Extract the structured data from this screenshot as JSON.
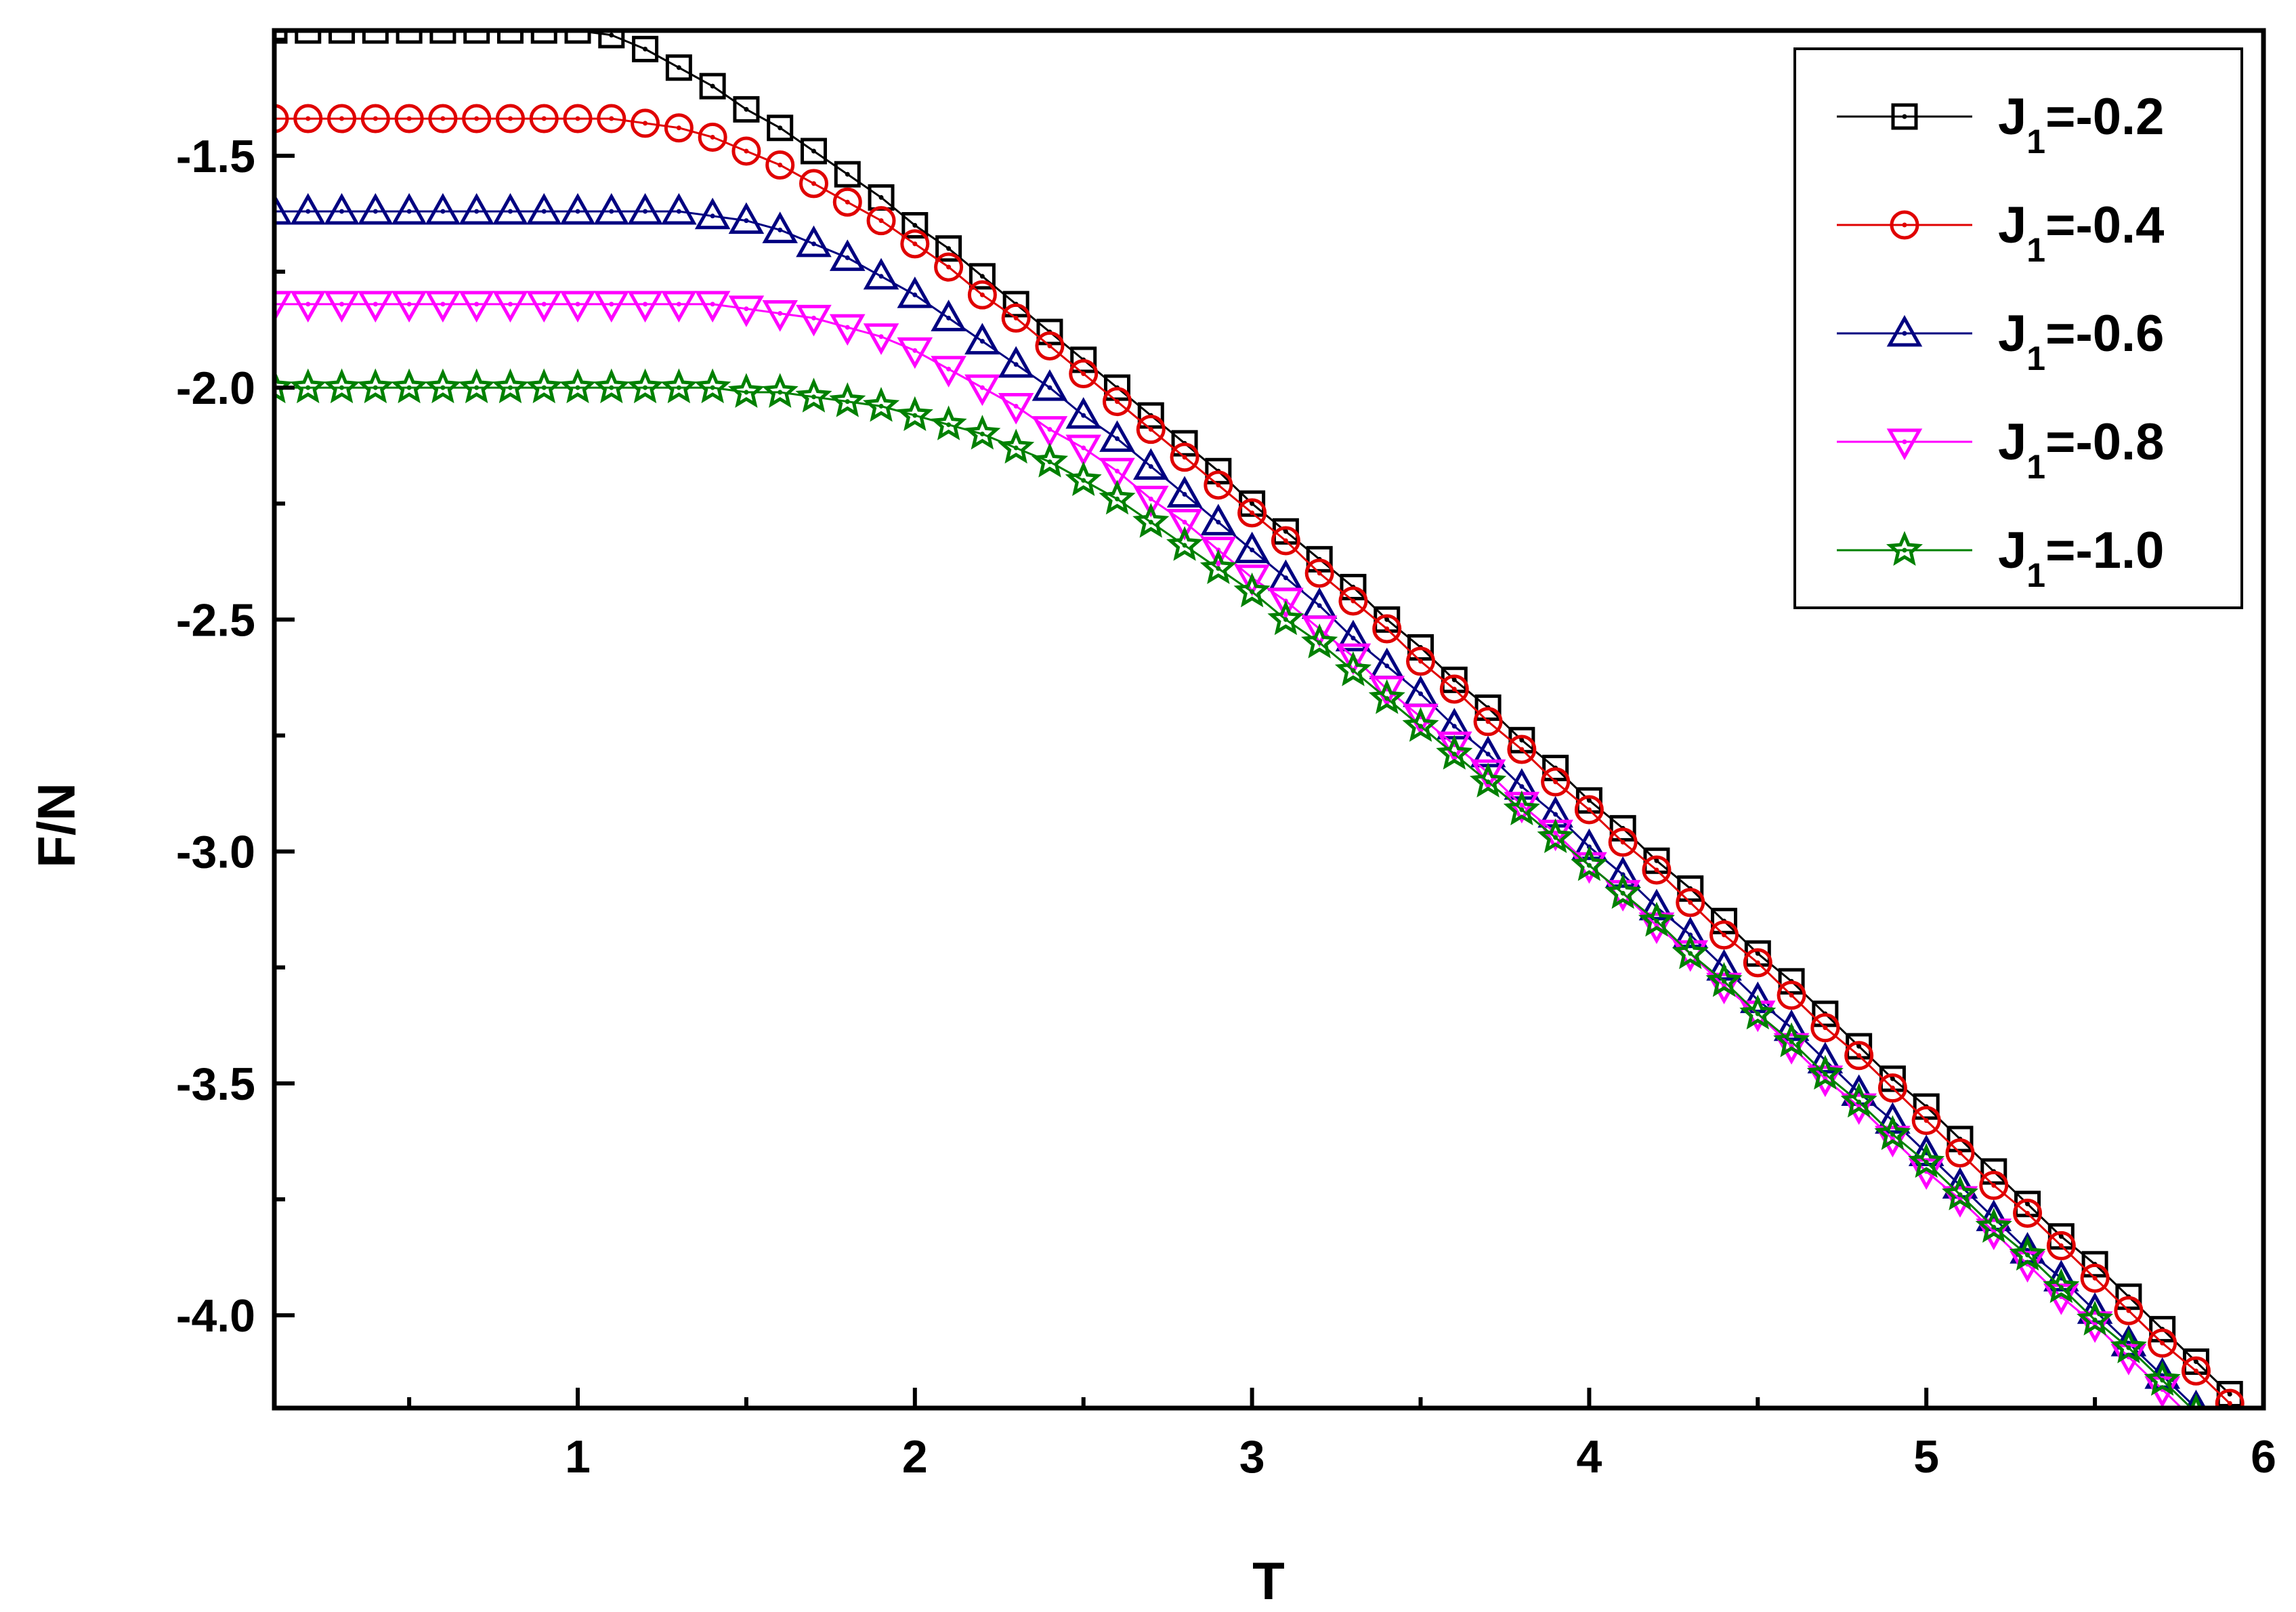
{
  "chart_data": {
    "type": "line",
    "xlabel": "T",
    "ylabel": "F/N",
    "xlim": [
      0.1,
      6.0
    ],
    "ylim": [
      -4.2,
      -1.23
    ],
    "x_ticks": [
      1,
      2,
      3,
      4,
      5,
      6
    ],
    "x_tick_labels": [
      "1",
      "2",
      "3",
      "4",
      "5",
      "6"
    ],
    "y_ticks": [
      -1.5,
      -2.0,
      -2.5,
      -3.0,
      -3.5,
      -4.0
    ],
    "y_tick_labels": [
      "-1.5",
      "-2.0",
      "-2.5",
      "-3.0",
      "-3.5",
      "-4.0"
    ],
    "grid": false,
    "legend_position": "top-right",
    "x": [
      0.1,
      0.2,
      0.3,
      0.4,
      0.5,
      0.6,
      0.7,
      0.8,
      0.9,
      1.0,
      1.1,
      1.2,
      1.3,
      1.4,
      1.5,
      1.6,
      1.7,
      1.8,
      1.9,
      2.0,
      2.1,
      2.2,
      2.3,
      2.4,
      2.5,
      2.6,
      2.7,
      2.8,
      2.9,
      3.0,
      3.1,
      3.2,
      3.3,
      3.4,
      3.5,
      3.6,
      3.7,
      3.8,
      3.9,
      4.0,
      4.1,
      4.2,
      4.3,
      4.4,
      4.5,
      4.6,
      4.7,
      4.8,
      4.9,
      5.0,
      5.1,
      5.2,
      5.3,
      5.4,
      5.5,
      5.6,
      5.7,
      5.8,
      5.9
    ],
    "series": [
      {
        "legend_prefix": "J",
        "legend_sub": "1",
        "legend_value": "=-0.2",
        "color": "#000000",
        "marker": "square",
        "values": [
          -1.23,
          -1.23,
          -1.23,
          -1.23,
          -1.23,
          -1.23,
          -1.23,
          -1.23,
          -1.23,
          -1.23,
          -1.24,
          -1.27,
          -1.31,
          -1.35,
          -1.4,
          -1.44,
          -1.49,
          -1.54,
          -1.59,
          -1.65,
          -1.7,
          -1.76,
          -1.82,
          -1.88,
          -1.94,
          -2.0,
          -2.06,
          -2.12,
          -2.18,
          -2.25,
          -2.31,
          -2.37,
          -2.43,
          -2.5,
          -2.56,
          -2.63,
          -2.69,
          -2.76,
          -2.82,
          -2.89,
          -2.95,
          -3.02,
          -3.08,
          -3.15,
          -3.22,
          -3.28,
          -3.35,
          -3.42,
          -3.49,
          -3.55,
          -3.62,
          -3.69,
          -3.76,
          -3.83,
          -3.89,
          -3.96,
          -4.03,
          -4.1,
          -4.17
        ]
      },
      {
        "legend_prefix": "J",
        "legend_sub": "1",
        "legend_value": "=-0.4",
        "color": "#e00000",
        "marker": "circle",
        "values": [
          -1.42,
          -1.42,
          -1.42,
          -1.42,
          -1.42,
          -1.42,
          -1.42,
          -1.42,
          -1.42,
          -1.42,
          -1.42,
          -1.43,
          -1.44,
          -1.46,
          -1.49,
          -1.52,
          -1.56,
          -1.6,
          -1.64,
          -1.69,
          -1.74,
          -1.8,
          -1.85,
          -1.91,
          -1.97,
          -2.03,
          -2.09,
          -2.15,
          -2.21,
          -2.27,
          -2.33,
          -2.4,
          -2.46,
          -2.52,
          -2.59,
          -2.65,
          -2.72,
          -2.78,
          -2.85,
          -2.91,
          -2.98,
          -3.04,
          -3.11,
          -3.18,
          -3.24,
          -3.31,
          -3.38,
          -3.44,
          -3.51,
          -3.58,
          -3.65,
          -3.72,
          -3.78,
          -3.85,
          -3.92,
          -3.99,
          -4.06,
          -4.12,
          -4.19
        ]
      },
      {
        "legend_prefix": "J",
        "legend_sub": "1",
        "legend_value": "=-0.6",
        "color": "#000080",
        "marker": "triangle-up",
        "values": [
          -1.62,
          -1.62,
          -1.62,
          -1.62,
          -1.62,
          -1.62,
          -1.62,
          -1.62,
          -1.62,
          -1.62,
          -1.62,
          -1.62,
          -1.62,
          -1.63,
          -1.64,
          -1.66,
          -1.69,
          -1.72,
          -1.76,
          -1.8,
          -1.85,
          -1.9,
          -1.95,
          -2.0,
          -2.06,
          -2.11,
          -2.17,
          -2.23,
          -2.29,
          -2.35,
          -2.41,
          -2.47,
          -2.54,
          -2.6,
          -2.66,
          -2.73,
          -2.79,
          -2.86,
          -2.92,
          -2.99,
          -3.05,
          -3.12,
          -3.18,
          -3.25,
          -3.32,
          -3.38,
          -3.45,
          -3.52,
          -3.58,
          -3.65,
          -3.72,
          -3.79,
          -3.86,
          -3.92,
          -3.99,
          -4.06,
          -4.13,
          -4.2,
          -4.27
        ]
      },
      {
        "legend_prefix": "J",
        "legend_sub": "1",
        "legend_value": "=-0.8",
        "color": "#ff00ff",
        "marker": "triangle-down",
        "values": [
          -1.82,
          -1.82,
          -1.82,
          -1.82,
          -1.82,
          -1.82,
          -1.82,
          -1.82,
          -1.82,
          -1.82,
          -1.82,
          -1.82,
          -1.82,
          -1.82,
          -1.83,
          -1.84,
          -1.85,
          -1.87,
          -1.89,
          -1.92,
          -1.96,
          -2.0,
          -2.04,
          -2.09,
          -2.13,
          -2.18,
          -2.24,
          -2.29,
          -2.35,
          -2.41,
          -2.46,
          -2.52,
          -2.58,
          -2.65,
          -2.71,
          -2.77,
          -2.83,
          -2.9,
          -2.96,
          -3.03,
          -3.09,
          -3.16,
          -3.22,
          -3.29,
          -3.35,
          -3.42,
          -3.49,
          -3.55,
          -3.62,
          -3.69,
          -3.75,
          -3.82,
          -3.89,
          -3.96,
          -4.02,
          -4.09,
          -4.16,
          -4.23,
          -4.3
        ]
      },
      {
        "legend_prefix": "J",
        "legend_sub": "1",
        "legend_value": "=-1.0",
        "color": "#008000",
        "marker": "star",
        "values": [
          -2.0,
          -2.0,
          -2.0,
          -2.0,
          -2.0,
          -2.0,
          -2.0,
          -2.0,
          -2.0,
          -2.0,
          -2.0,
          -2.0,
          -2.0,
          -2.0,
          -2.01,
          -2.01,
          -2.02,
          -2.03,
          -2.04,
          -2.06,
          -2.08,
          -2.1,
          -2.13,
          -2.16,
          -2.2,
          -2.24,
          -2.29,
          -2.34,
          -2.39,
          -2.44,
          -2.5,
          -2.55,
          -2.61,
          -2.67,
          -2.73,
          -2.79,
          -2.85,
          -2.91,
          -2.97,
          -3.03,
          -3.09,
          -3.15,
          -3.22,
          -3.28,
          -3.35,
          -3.41,
          -3.48,
          -3.54,
          -3.61,
          -3.67,
          -3.74,
          -3.81,
          -3.87,
          -3.94,
          -4.01,
          -4.07,
          -4.14,
          -4.21,
          -4.28
        ]
      }
    ]
  }
}
